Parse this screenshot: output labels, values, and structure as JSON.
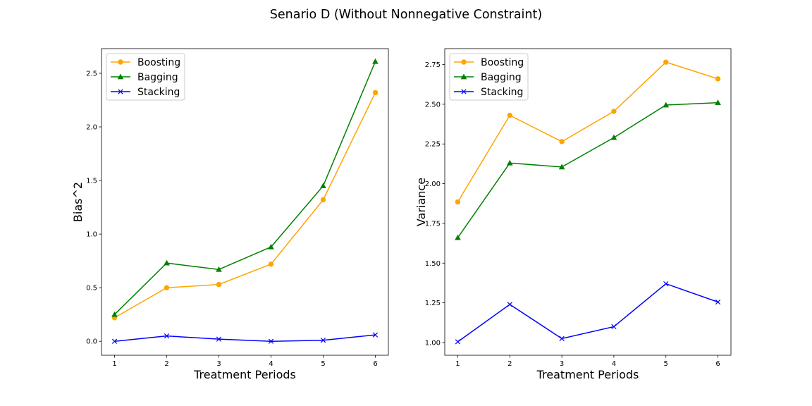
{
  "figure": {
    "title": "Senario D (Without Nonnegative Constraint)"
  },
  "chart_data": [
    {
      "type": "line",
      "title": "",
      "xlabel": "Treatment Periods",
      "ylabel": "Bias^2",
      "x": [
        1,
        2,
        3,
        4,
        5,
        6
      ],
      "xlim": [
        0.75,
        6.25
      ],
      "ylim": [
        -0.13,
        2.73
      ],
      "yticks": [
        0.0,
        0.5,
        1.0,
        1.5,
        2.0,
        2.5
      ],
      "ytick_labels": [
        "0.0",
        "0.5",
        "1.0",
        "1.5",
        "2.0",
        "2.5"
      ],
      "legend_position": "upper-left",
      "grid": false,
      "series": [
        {
          "name": "Boosting",
          "color": "#ffa500",
          "marker": "circle",
          "values": [
            0.22,
            0.5,
            0.53,
            0.72,
            1.32,
            2.32
          ]
        },
        {
          "name": "Bagging",
          "color": "#008000",
          "marker": "triangle",
          "values": [
            0.25,
            0.73,
            0.67,
            0.88,
            1.45,
            2.61
          ]
        },
        {
          "name": "Stacking",
          "color": "#0000ff",
          "marker": "x",
          "values": [
            0.0,
            0.05,
            0.02,
            0.0,
            0.01,
            0.06
          ]
        }
      ]
    },
    {
      "type": "line",
      "title": "",
      "xlabel": "Treatment Periods",
      "ylabel": "Variance",
      "x": [
        1,
        2,
        3,
        4,
        5,
        6
      ],
      "xlim": [
        0.75,
        6.25
      ],
      "ylim": [
        0.92,
        2.85
      ],
      "yticks": [
        1.0,
        1.25,
        1.5,
        1.75,
        2.0,
        2.25,
        2.5,
        2.75
      ],
      "ytick_labels": [
        "1.00",
        "1.25",
        "1.50",
        "1.75",
        "2.00",
        "2.25",
        "2.50",
        "2.75"
      ],
      "legend_position": "upper-left",
      "grid": false,
      "series": [
        {
          "name": "Boosting",
          "color": "#ffa500",
          "marker": "circle",
          "values": [
            1.885,
            2.43,
            2.265,
            2.455,
            2.765,
            2.66
          ]
        },
        {
          "name": "Bagging",
          "color": "#008000",
          "marker": "triangle",
          "values": [
            1.66,
            2.13,
            2.105,
            2.29,
            2.495,
            2.51
          ]
        },
        {
          "name": "Stacking",
          "color": "#0000ff",
          "marker": "x",
          "values": [
            1.005,
            1.24,
            1.025,
            1.1,
            1.37,
            1.255
          ]
        }
      ]
    }
  ]
}
